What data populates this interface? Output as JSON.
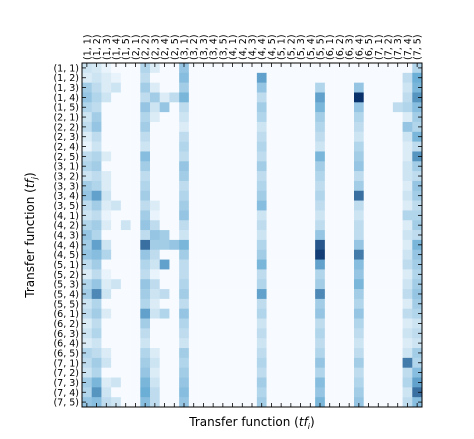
{
  "chart_data": {
    "type": "heatmap",
    "title": "",
    "xlabel": "Transfer function (tf_i)",
    "ylabel": "Transfer function (tf_j)",
    "xlabel_parts": {
      "prefix": "Transfer function (",
      "var": "tf",
      "sub": "i",
      "suffix": ")"
    },
    "ylabel_parts": {
      "prefix": "Transfer function (",
      "var": "tf",
      "sub": "j",
      "suffix": ")"
    },
    "x_tick_position": "top",
    "y_tick_position": "left",
    "grid": false,
    "colormap": "Blues",
    "color_min": "#f7fbff",
    "color_max": "#08306b",
    "value_range": [
      0,
      1
    ],
    "labels": [
      "(1, 1)",
      "(1, 2)",
      "(1, 3)",
      "(1, 4)",
      "(1, 5)",
      "(2, 1)",
      "(2, 2)",
      "(2, 3)",
      "(2, 4)",
      "(2, 5)",
      "(3, 1)",
      "(3, 2)",
      "(3, 3)",
      "(3, 4)",
      "(3, 5)",
      "(4, 1)",
      "(4, 2)",
      "(4, 3)",
      "(4, 4)",
      "(4, 5)",
      "(5, 1)",
      "(5, 2)",
      "(5, 3)",
      "(5, 4)",
      "(5, 5)",
      "(6, 1)",
      "(6, 2)",
      "(6, 3)",
      "(6, 4)",
      "(6, 5)",
      "(7, 1)",
      "(7, 2)",
      "(7, 3)",
      "(7, 4)",
      "(7, 5)"
    ],
    "x_tick_labels": [
      "(1, 1)",
      "(1, 2)",
      "(1, 3)",
      "(1, 4)",
      "(1, 5)",
      "(2, 1)",
      "(2, 2)",
      "(2, 3)",
      "(2, 4)",
      "(2, 5)",
      "(3, 1)",
      "(3, 2)",
      "(3, 3)",
      "(3, 4)",
      "(3, 5)",
      "(4, 1)",
      "(4, 2)",
      "(4, 3)",
      "(4, 4)",
      "(4, 5)",
      "(5, 1)",
      "(5, 2)",
      "(5, 3)",
      "(5, 4)",
      "(5, 5)",
      "(6, 1)",
      "(6, 2)",
      "(6, 3)",
      "(6, 4)",
      "(6, 5)",
      "(7, 1)",
      "(7, 2)",
      "(7, 3)",
      "(7, 4)",
      "(7, 5)"
    ],
    "y_tick_labels": [
      "(1, 1)",
      "(1, 2)",
      "(1, 3)",
      "(1, 4)",
      "(1, 5)",
      "(2, 1)",
      "(2, 2)",
      "(2, 3)",
      "(2, 4)",
      "(2, 5)",
      "(3, 1)",
      "(3, 2)",
      "(3, 3)",
      "(3, 4)",
      "(3, 5)",
      "(4, 1)",
      "(4, 2)",
      "(4, 3)",
      "(4, 4)",
      "(4, 5)",
      "(5, 1)",
      "(5, 2)",
      "(5, 3)",
      "(5, 4)",
      "(5, 5)",
      "(6, 1)",
      "(6, 2)",
      "(6, 3)",
      "(6, 4)",
      "(6, 5)",
      "(7, 1)",
      "(7, 2)",
      "(7, 3)",
      "(7, 4)",
      "(7, 5)"
    ],
    "z": [
      [
        0.15,
        0.12,
        0.05,
        0,
        0,
        0,
        0.25,
        0.1,
        0,
        0,
        0.35,
        0,
        0,
        0,
        0,
        0,
        0,
        0,
        0,
        0,
        0,
        0,
        0,
        0,
        0,
        0,
        0,
        0,
        0,
        0,
        0,
        0,
        0,
        0,
        0.25
      ],
      [
        0.1,
        0.15,
        0.1,
        0.05,
        0,
        0,
        0.2,
        0,
        0,
        0,
        0.4,
        0,
        0,
        0,
        0,
        0,
        0,
        0,
        0.55,
        0,
        0,
        0,
        0,
        0,
        0,
        0,
        0,
        0,
        0,
        0,
        0,
        0,
        0,
        0.2,
        0.5
      ],
      [
        0.3,
        0.2,
        0.1,
        0.15,
        0,
        0,
        0.3,
        0.1,
        0,
        0,
        0.3,
        0,
        0,
        0,
        0,
        0,
        0,
        0,
        0.35,
        0,
        0,
        0,
        0,
        0,
        0.25,
        0,
        0,
        0,
        0.35,
        0,
        0,
        0,
        0,
        0.15,
        0.45
      ],
      [
        0.35,
        0.25,
        0.15,
        0,
        0,
        0,
        0.2,
        0.3,
        0.1,
        0.2,
        0.45,
        0,
        0,
        0,
        0,
        0,
        0,
        0,
        0.2,
        0,
        0,
        0,
        0,
        0,
        0.55,
        0,
        0,
        0,
        1.0,
        0,
        0,
        0,
        0,
        0.2,
        0.6
      ],
      [
        0.25,
        0.2,
        0,
        0,
        0,
        0,
        0.35,
        0.15,
        0.35,
        0,
        0.2,
        0,
        0,
        0,
        0,
        0,
        0,
        0,
        0.3,
        0,
        0,
        0,
        0,
        0,
        0.45,
        0,
        0,
        0,
        0.35,
        0,
        0,
        0,
        0.2,
        0.25,
        0.4
      ],
      [
        0.15,
        0.3,
        0,
        0,
        0,
        0,
        0.25,
        0.1,
        0,
        0,
        0.15,
        0,
        0,
        0,
        0,
        0,
        0,
        0,
        0.25,
        0,
        0,
        0,
        0,
        0,
        0.3,
        0,
        0,
        0,
        0.25,
        0,
        0,
        0,
        0,
        0.1,
        0.3
      ],
      [
        0.2,
        0.35,
        0,
        0,
        0,
        0,
        0.3,
        0,
        0,
        0,
        0.1,
        0,
        0,
        0,
        0,
        0,
        0,
        0,
        0.15,
        0,
        0,
        0,
        0,
        0,
        0.25,
        0,
        0,
        0,
        0.2,
        0,
        0,
        0,
        0,
        0.35,
        0.25
      ],
      [
        0.1,
        0.2,
        0,
        0,
        0,
        0,
        0.2,
        0,
        0,
        0,
        0.2,
        0,
        0,
        0,
        0,
        0,
        0,
        0,
        0.2,
        0,
        0,
        0,
        0,
        0,
        0.2,
        0,
        0,
        0,
        0.15,
        0,
        0,
        0,
        0,
        0.15,
        0.45
      ],
      [
        0.05,
        0.15,
        0,
        0,
        0,
        0,
        0.15,
        0,
        0,
        0,
        0.25,
        0,
        0,
        0,
        0,
        0,
        0,
        0,
        0.25,
        0,
        0,
        0,
        0,
        0,
        0.15,
        0,
        0,
        0,
        0.25,
        0,
        0,
        0,
        0,
        0.1,
        0.2
      ],
      [
        0.2,
        0.25,
        0.1,
        0,
        0,
        0,
        0.4,
        0,
        0,
        0,
        0.2,
        0,
        0,
        0,
        0,
        0,
        0,
        0,
        0.2,
        0,
        0,
        0,
        0,
        0,
        0.45,
        0,
        0,
        0,
        0.3,
        0,
        0,
        0,
        0,
        0.1,
        0.6
      ],
      [
        0.25,
        0.3,
        0,
        0,
        0,
        0,
        0.3,
        0,
        0,
        0,
        0.35,
        0,
        0,
        0,
        0,
        0,
        0,
        0,
        0.3,
        0,
        0,
        0,
        0,
        0,
        0.3,
        0,
        0,
        0,
        0.35,
        0,
        0,
        0,
        0,
        0.15,
        0.3
      ],
      [
        0.15,
        0.2,
        0.1,
        0,
        0,
        0,
        0.2,
        0,
        0,
        0,
        0.3,
        0,
        0,
        0,
        0,
        0,
        0,
        0,
        0.2,
        0,
        0,
        0,
        0,
        0,
        0.25,
        0,
        0,
        0,
        0.2,
        0,
        0,
        0,
        0,
        0.15,
        0.2
      ],
      [
        0.3,
        0.25,
        0.1,
        0,
        0,
        0,
        0.25,
        0,
        0,
        0,
        0.2,
        0,
        0,
        0,
        0,
        0,
        0,
        0,
        0.25,
        0,
        0,
        0,
        0,
        0,
        0.2,
        0,
        0,
        0,
        0.3,
        0,
        0,
        0,
        0,
        0.1,
        0.35
      ],
      [
        0.35,
        0.55,
        0.15,
        0,
        0,
        0,
        0.3,
        0,
        0,
        0,
        0.25,
        0,
        0,
        0,
        0,
        0,
        0,
        0,
        0.3,
        0,
        0,
        0,
        0,
        0,
        0.25,
        0,
        0,
        0,
        0.75,
        0,
        0,
        0,
        0,
        0.15,
        0.3
      ],
      [
        0.2,
        0.3,
        0.1,
        0.15,
        0,
        0,
        0.2,
        0.1,
        0,
        0,
        0.3,
        0,
        0,
        0,
        0,
        0,
        0,
        0,
        0.4,
        0,
        0,
        0,
        0,
        0,
        0.2,
        0,
        0,
        0,
        0.2,
        0,
        0,
        0,
        0,
        0.1,
        0.2
      ],
      [
        0.15,
        0.2,
        0.05,
        0,
        0,
        0,
        0.3,
        0.05,
        0,
        0,
        0.35,
        0,
        0,
        0,
        0,
        0,
        0,
        0,
        0.15,
        0,
        0,
        0,
        0,
        0,
        0.15,
        0,
        0,
        0,
        0.15,
        0,
        0,
        0,
        0,
        0.25,
        0.25
      ],
      [
        0.25,
        0.3,
        0.1,
        0,
        0.15,
        0,
        0.35,
        0.2,
        0,
        0,
        0.2,
        0,
        0,
        0,
        0,
        0,
        0,
        0,
        0.2,
        0,
        0,
        0,
        0,
        0,
        0.2,
        0,
        0,
        0,
        0.2,
        0,
        0,
        0,
        0,
        0.1,
        0.3
      ],
      [
        0.35,
        0.25,
        0,
        0,
        0,
        0,
        0.2,
        0.35,
        0.3,
        0,
        0.15,
        0,
        0,
        0,
        0,
        0,
        0,
        0,
        0.15,
        0,
        0,
        0,
        0,
        0,
        0.35,
        0,
        0,
        0,
        0.2,
        0,
        0,
        0,
        0,
        0.15,
        0.2
      ],
      [
        0.3,
        0.55,
        0.15,
        0,
        0,
        0,
        0.75,
        0.3,
        0.3,
        0.35,
        0.45,
        0,
        0,
        0,
        0,
        0,
        0,
        0,
        0.25,
        0,
        0,
        0,
        0,
        0,
        0.85,
        0,
        0,
        0,
        0.35,
        0,
        0,
        0,
        0,
        0.1,
        0.45
      ],
      [
        0.35,
        0.4,
        0.25,
        0,
        0,
        0,
        0.35,
        0.2,
        0,
        0,
        0.3,
        0,
        0,
        0,
        0,
        0,
        0,
        0,
        0.3,
        0,
        0,
        0,
        0,
        0,
        0.95,
        0,
        0,
        0,
        0.7,
        0,
        0,
        0,
        0,
        0.15,
        0.35
      ],
      [
        0.2,
        0.3,
        0,
        0,
        0,
        0,
        0.25,
        0.15,
        0.55,
        0,
        0.2,
        0,
        0,
        0,
        0,
        0,
        0,
        0,
        0.45,
        0,
        0,
        0,
        0,
        0,
        0.55,
        0,
        0,
        0,
        0.4,
        0,
        0,
        0,
        0,
        0.2,
        0.3
      ],
      [
        0.1,
        0.2,
        0.05,
        0,
        0,
        0,
        0.2,
        0.05,
        0,
        0,
        0.2,
        0,
        0,
        0,
        0,
        0,
        0,
        0,
        0.2,
        0,
        0,
        0,
        0,
        0,
        0.25,
        0,
        0,
        0,
        0.35,
        0,
        0,
        0,
        0,
        0.1,
        0.25
      ],
      [
        0.25,
        0.35,
        0.1,
        0.15,
        0,
        0,
        0.35,
        0.2,
        0,
        0,
        0.25,
        0,
        0,
        0,
        0,
        0,
        0,
        0,
        0.25,
        0,
        0,
        0,
        0,
        0,
        0.3,
        0,
        0,
        0,
        0.45,
        0,
        0,
        0,
        0,
        0.15,
        0.3
      ],
      [
        0.3,
        0.65,
        0.15,
        0,
        0,
        0,
        0.3,
        0.15,
        0.2,
        0,
        0.3,
        0,
        0,
        0,
        0,
        0,
        0,
        0,
        0.55,
        0,
        0,
        0,
        0,
        0,
        0.65,
        0,
        0,
        0,
        0.3,
        0,
        0,
        0,
        0,
        0.2,
        0.35
      ],
      [
        0.15,
        0.25,
        0,
        0,
        0,
        0,
        0.25,
        0.1,
        0,
        0,
        0.2,
        0,
        0,
        0,
        0,
        0,
        0,
        0,
        0.2,
        0,
        0,
        0,
        0,
        0,
        0.3,
        0,
        0,
        0,
        0.25,
        0,
        0,
        0,
        0,
        0.1,
        0.3
      ],
      [
        0.2,
        0.3,
        0.1,
        0,
        0,
        0,
        0.55,
        0.15,
        0.25,
        0,
        0.35,
        0,
        0,
        0,
        0,
        0,
        0,
        0,
        0.25,
        0,
        0,
        0,
        0,
        0,
        0.35,
        0,
        0,
        0,
        0.35,
        0,
        0,
        0,
        0,
        0.2,
        0.25
      ],
      [
        0.1,
        0.2,
        0,
        0,
        0,
        0,
        0.3,
        0,
        0,
        0,
        0.25,
        0,
        0,
        0,
        0,
        0,
        0,
        0,
        0.15,
        0,
        0,
        0,
        0,
        0,
        0.2,
        0,
        0,
        0,
        0.25,
        0,
        0,
        0,
        0,
        0.1,
        0.15
      ],
      [
        0.15,
        0.25,
        0,
        0,
        0,
        0,
        0.2,
        0,
        0,
        0,
        0.2,
        0,
        0,
        0,
        0,
        0,
        0,
        0,
        0.2,
        0,
        0,
        0,
        0,
        0,
        0.25,
        0,
        0,
        0,
        0.2,
        0,
        0,
        0,
        0,
        0.15,
        0.2
      ],
      [
        0.1,
        0.15,
        0,
        0,
        0,
        0,
        0.15,
        0,
        0,
        0,
        0.15,
        0,
        0,
        0,
        0,
        0,
        0,
        0,
        0.15,
        0,
        0,
        0,
        0,
        0,
        0.2,
        0,
        0,
        0,
        0.15,
        0,
        0,
        0,
        0,
        0.1,
        0.15
      ],
      [
        0.25,
        0.2,
        0.1,
        0,
        0,
        0,
        0.25,
        0.1,
        0,
        0,
        0.3,
        0,
        0,
        0,
        0,
        0,
        0,
        0,
        0.2,
        0,
        0,
        0,
        0,
        0,
        0.25,
        0,
        0,
        0,
        0.2,
        0,
        0,
        0,
        0,
        0.15,
        0.3
      ],
      [
        0.2,
        0.3,
        0.15,
        0,
        0,
        0,
        0.3,
        0.15,
        0,
        0,
        0.25,
        0,
        0,
        0,
        0,
        0,
        0,
        0,
        0.25,
        0,
        0,
        0,
        0,
        0,
        0.35,
        0,
        0,
        0,
        0.3,
        0,
        0,
        0,
        0,
        0.7,
        0.25
      ],
      [
        0.15,
        0.25,
        0,
        0,
        0,
        0,
        0.35,
        0.1,
        0,
        0,
        0.3,
        0,
        0,
        0,
        0,
        0,
        0,
        0,
        0.2,
        0,
        0,
        0,
        0,
        0,
        0.25,
        0,
        0,
        0,
        0.2,
        0,
        0,
        0,
        0,
        0.2,
        0.4
      ],
      [
        0.3,
        0.45,
        0.1,
        0.15,
        0,
        0,
        0.45,
        0.15,
        0,
        0,
        0.35,
        0,
        0,
        0,
        0,
        0,
        0,
        0,
        0.3,
        0,
        0,
        0,
        0,
        0,
        0.4,
        0,
        0,
        0,
        0.25,
        0,
        0,
        0,
        0,
        0.25,
        0.55
      ],
      [
        0.25,
        0.6,
        0.15,
        0,
        0,
        0,
        0.5,
        0.2,
        0,
        0,
        0.4,
        0,
        0,
        0,
        0,
        0,
        0,
        0,
        0.25,
        0,
        0,
        0,
        0,
        0,
        0.35,
        0,
        0,
        0,
        0.3,
        0,
        0,
        0,
        0,
        0.15,
        0.75
      ],
      [
        0.35,
        0.4,
        0.2,
        0.15,
        0,
        0,
        0.4,
        0.2,
        0,
        0,
        0.35,
        0,
        0,
        0,
        0,
        0,
        0,
        0,
        0.3,
        0,
        0,
        0,
        0,
        0,
        0.45,
        0,
        0,
        0,
        0.35,
        0,
        0,
        0,
        0,
        0.2,
        0.4
      ]
    ]
  }
}
